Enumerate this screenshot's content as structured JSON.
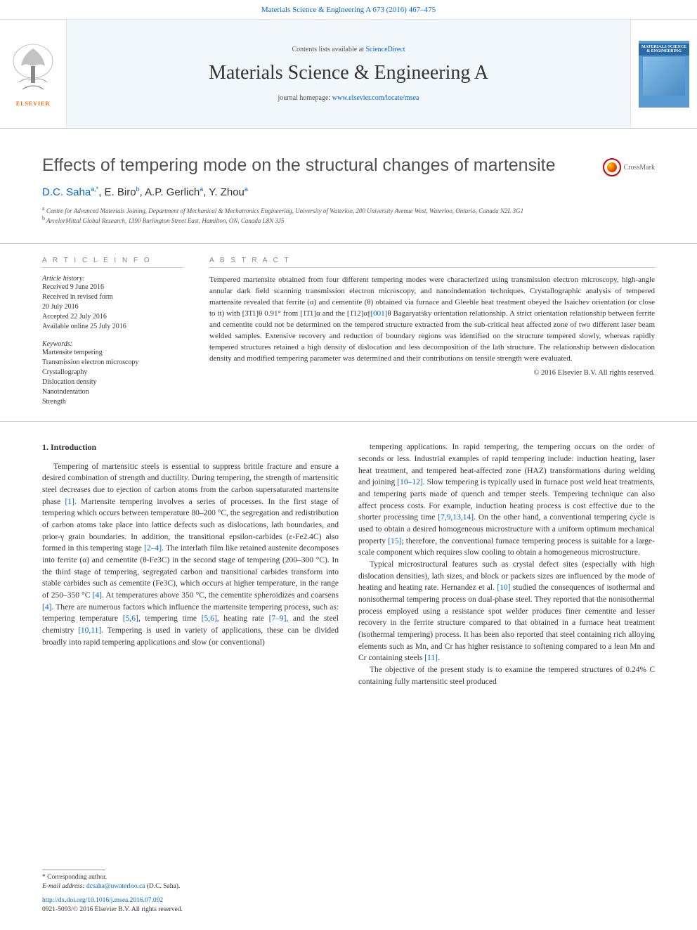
{
  "topbar": {
    "citation": "Materials Science & Engineering A 673 (2016) 467–475"
  },
  "header": {
    "contents_prefix": "Contents lists available at ",
    "contents_link": "ScienceDirect",
    "journal_name": "Materials Science & Engineering A",
    "homepage_prefix": "journal homepage: ",
    "homepage_url": "www.elsevier.com/locate/msea",
    "publisher_logo_text": "ELSEVIER",
    "cover_title": "MATERIALS SCIENCE & ENGINEERING"
  },
  "crossmark": {
    "label": "CrossMark"
  },
  "title": {
    "text": "Effects of tempering mode on the structural changes of martensite"
  },
  "authors": {
    "list": "D.C. Saha",
    "a1_sup": "a,*",
    "a2": ", E. Biro",
    "a2_sup": "b",
    "a3": ", A.P. Gerlich",
    "a3_sup": "a",
    "a4": ", Y. Zhou",
    "a4_sup": "a"
  },
  "affiliations": {
    "a": "Centre for Advanced Materials Joining, Department of Mechanical & Mechatronics Engineering, University of Waterloo, 200 University Avenue West, Waterloo, Ontario, Canada N2L 3G1",
    "b": "ArcelorMittal Global Research, 1390 Burlington Street East, Hamilton, ON, Canada L8N 3J5"
  },
  "article_info": {
    "heading": "A R T I C L E  I N F O",
    "history_label": "Article history:",
    "history": [
      "Received 9 June 2016",
      "Received in revised form",
      "20 July 2016",
      "Accepted 22 July 2016",
      "Available online 25 July 2016"
    ],
    "keywords_label": "Keywords:",
    "keywords": [
      "Martensite tempering",
      "Transmission electron microscopy",
      "Crystallography",
      "Dislocation density",
      "Nanoindentation",
      "Strength"
    ]
  },
  "abstract": {
    "heading": "A B S T R A C T",
    "text": "Tempered martensite obtained from four different tempering modes were characterized using transmission electron microscopy, high-angle annular dark field scanning transmission electron microscopy, and nanoindentation techniques. Crystallographic analysis of tempered martensite revealed that ferrite (α) and cementite (θ) obtained via furnace and Gleeble heat treatment obeyed the Isaichev orientation (or close to it) with [3̄1̄1]θ 0.91° from [1̄1̄1]α and the [1̄12]α||[001]θ Bagaryatsky orientation relationship. A strict orientation relationship between ferrite and cementite could not be determined on the tempered structure extracted from the sub-critical heat affected zone of two different laser beam welded samples. Extensive recovery and reduction of boundary regions was identified on the structure tempered slowly, whereas rapidly tempered structures retained a high density of dislocation and less decomposition of the lath structure. The relationship between dislocation density and modified tempering parameter was determined and their contributions on tensile strength were evaluated.",
    "copyright": "© 2016 Elsevier B.V. All rights reserved."
  },
  "body": {
    "intro_heading": "1. Introduction",
    "col1_p1": "Tempering of martensitic steels is essential to suppress brittle fracture and ensure a desired combination of strength and ductility. During tempering, the strength of martensitic steel decreases due to ejection of carbon atoms from the carbon supersaturated martensite phase [1]. Martensite tempering involves a series of processes. In the first stage of tempering which occurs between temperature 80–200 °C, the segregation and redistribution of carbon atoms take place into lattice defects such as dislocations, lath boundaries, and prior-γ grain boundaries. In addition, the transitional epsilon-carbides (ε-Fe2.4C) also formed in this tempering stage [2–4]. The interlath film like retained austenite decomposes into ferrite (α) and cementite (θ-Fe3C) in the second stage of tempering (200–300 °C). In the third stage of tempering, segregated carbon and transitional carbides transform into stable carbides such as cementite (Fe3C), which occurs at higher temperature, in the range of 250–350 °C [4]. At temperatures above 350 °C, the cementite spheroidizes and coarsens [4]. There are numerous factors which influence the martensite tempering process, such as: tempering temperature [5,6], tempering time [5,6], heating rate [7–9], and the steel chemistry [10,11]. Tempering is used in variety of applications, these can be divided broadly into rapid tempering applications and slow (or conventional)",
    "col2_p1": "tempering applications. In rapid tempering, the tempering occurs on the order of seconds or less. Industrial examples of rapid tempering include: induction heating, laser heat treatment, and tempered heat-affected zone (HAZ) transformations during welding and joining [10–12]. Slow tempering is typically used in furnace post weld heat treatments, and tempering parts made of quench and temper steels. Tempering technique can also affect process costs. For example, induction heating process is cost effective due to the shorter processing time [7,9,13,14]. On the other hand, a conventional tempering cycle is used to obtain a desired homogeneous microstructure with a uniform optimum mechanical property [15]; therefore, the conventional furnace tempering process is suitable for a large-scale component which requires slow cooling to obtain a homogeneous microstructure.",
    "col2_p2": "Typical microstructural features such as crystal defect sites (especially with high dislocation densities), lath sizes, and block or packets sizes are influenced by the mode of heating and heating rate. Hernandez et al. [10] studied the consequences of isothermal and nonisothermal tempering process on dual-phase steel. They reported that the nonisothermal process employed using a resistance spot welder produces finer cementite and lesser recovery in the ferrite structure compared to that obtained in a furnace heat treatment (isothermal tempering) process. It has been also reported that steel containing rich alloying elements such as Mn, and Cr has higher resistance to softening compared to a lean Mn and Cr containing steels [11].",
    "col2_p3": "The objective of the present study is to examine the tempered structures of 0.24% C containing fully martensitic steel produced"
  },
  "footer": {
    "corr_label": "* Corresponding author.",
    "email_label": "E-mail address: ",
    "email": "dcsaha@uwaterloo.ca",
    "email_suffix": " (D.C. Saha).",
    "doi": "http://dx.doi.org/10.1016/j.msea.2016.07.092",
    "issn_line": "0921-5093/© 2016 Elsevier B.V. All rights reserved."
  },
  "colors": {
    "link": "#0066cc",
    "elsevier_orange": "#ff6600",
    "cover_blue": "#5a9bd4",
    "text": "#333333",
    "heading_gray": "#888888",
    "crossmark_red": "#cc0000"
  }
}
